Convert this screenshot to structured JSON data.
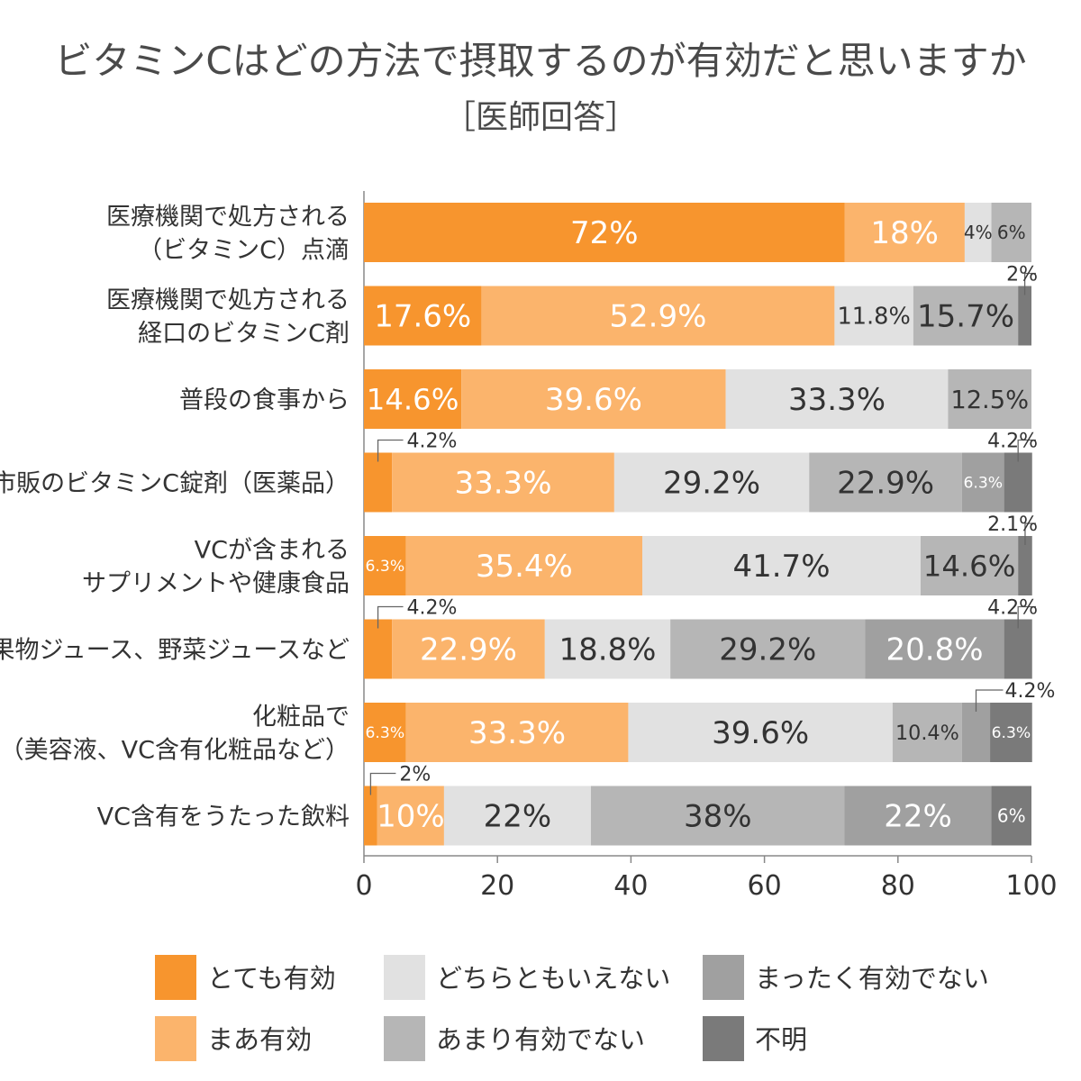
{
  "chart_data": {
    "type": "bar",
    "orientation": "horizontal",
    "stacked": true,
    "title": "ビタミンCはどの方法で摂取するのが有効だと思いますか",
    "subtitle": "［医師回答］",
    "xlim": [
      0,
      100
    ],
    "x_ticks": [
      "0",
      "20",
      "40",
      "60",
      "80",
      "100"
    ],
    "categories": [
      [
        "医療機関で処方される",
        "（ビタミンC）点滴"
      ],
      [
        "医療機関で処方される",
        "経口のビタミンC剤"
      ],
      [
        "普段の食事から"
      ],
      [
        "市販のビタミンC錠剤（医薬品）"
      ],
      [
        "VCが含まれる",
        "サプリメントや健康食品"
      ],
      [
        "果物ジュース、野菜ジュースなど"
      ],
      [
        "化粧品で",
        "（美容液、VC含有化粧品など）"
      ],
      [
        "VC含有をうたった飲料"
      ]
    ],
    "series": [
      {
        "name": "とても有効",
        "color": "#f7952e",
        "values": [
          72,
          17.6,
          14.6,
          4.2,
          6.3,
          4.2,
          6.3,
          2
        ],
        "labels": [
          "72%",
          "17.6%",
          "14.6%",
          "4.2%",
          "6.3%",
          "4.2%",
          "6.3%",
          "2%"
        ]
      },
      {
        "name": "まあ有効",
        "color": "#fbb46c",
        "values": [
          18,
          52.9,
          39.6,
          33.3,
          35.4,
          22.9,
          33.3,
          10
        ],
        "labels": [
          "18%",
          "52.9%",
          "39.6%",
          "33.3%",
          "35.4%",
          "22.9%",
          "33.3%",
          "10%"
        ]
      },
      {
        "name": "どちらともいえない",
        "color": "#e1e1e1",
        "values": [
          4,
          11.8,
          33.3,
          29.2,
          41.7,
          18.8,
          39.6,
          22
        ],
        "labels": [
          "4%",
          "11.8%",
          "33.3%",
          "29.2%",
          "41.7%",
          "18.8%",
          "39.6%",
          "22%"
        ]
      },
      {
        "name": "あまり有効でない",
        "color": "#b6b6b6",
        "values": [
          6,
          15.7,
          12.5,
          22.9,
          14.6,
          29.2,
          10.4,
          38
        ],
        "labels": [
          "6%",
          "15.7%",
          "12.5%",
          "22.9%",
          "14.6%",
          "29.2%",
          "10.4%",
          "38%"
        ]
      },
      {
        "name": "まったく有効でない",
        "color": "#a0a0a0",
        "values": [
          0,
          0,
          0,
          6.3,
          0,
          20.8,
          4.2,
          22
        ],
        "labels": [
          "",
          "",
          "",
          "6.3%",
          "",
          "20.8%",
          "4.2%",
          "22%"
        ]
      },
      {
        "name": "不明",
        "color": "#7a7a7a",
        "values": [
          0,
          2,
          0,
          4.2,
          2.1,
          4.2,
          6.3,
          6
        ],
        "labels": [
          "",
          "2%",
          "",
          "4.2%",
          "2.1%",
          "4.2%",
          "6.3%",
          "6%"
        ]
      }
    ],
    "legend": [
      {
        "label": "とても有効",
        "color": "#f7952e"
      },
      {
        "label": "まあ有効",
        "color": "#fbb46c"
      },
      {
        "label": "どちらともいえない",
        "color": "#e1e1e1"
      },
      {
        "label": "あまり有効でない",
        "color": "#b6b6b6"
      },
      {
        "label": "まったく有効でない",
        "color": "#a0a0a0"
      },
      {
        "label": "不明",
        "color": "#7a7a7a"
      }
    ],
    "legend_position": "bottom",
    "grid": false
  }
}
